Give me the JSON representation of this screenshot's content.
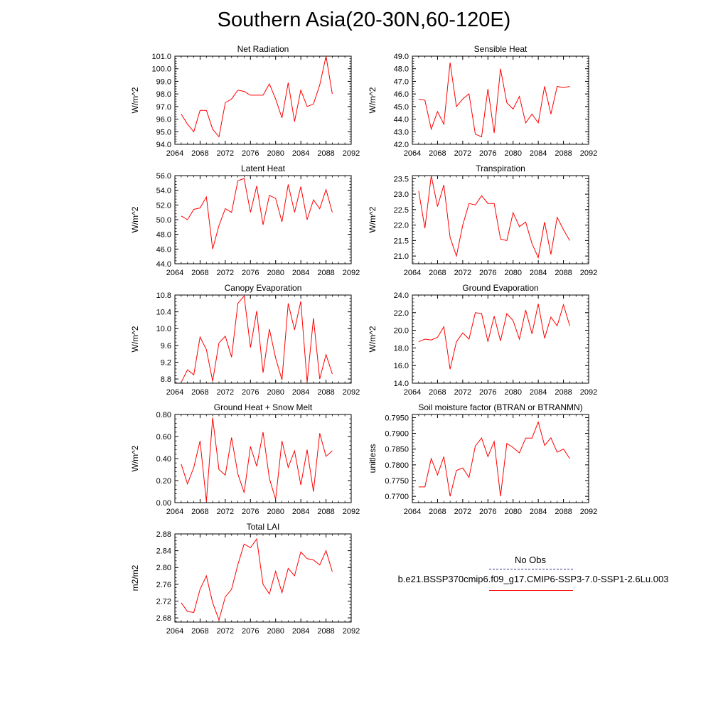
{
  "title": "Southern Asia(20-30N,60-120E)",
  "legend": {
    "obs_label": "No Obs",
    "obs_color": "#2b2b8f",
    "run_label": "b.e21.BSSP370cmip6.f09_g17.CMIP6-SSP3-7.0-SSP1-2.6Lu.003",
    "run_color": "#ff0000"
  },
  "chart_data": [
    {
      "type": "line",
      "title": "Net Radiation",
      "ylabel": "W/m^2",
      "xlim": [
        2064,
        2092
      ],
      "ylim": [
        94.0,
        101.0
      ],
      "xticks": [
        2064,
        2068,
        2072,
        2076,
        2080,
        2084,
        2088,
        2092
      ],
      "yticks": [
        "94.0",
        "95.0",
        "96.0",
        "97.0",
        "98.0",
        "99.0",
        "100.0",
        "101.0"
      ],
      "series": [
        {
          "color": "#ff0000",
          "x": [
            2065,
            2066,
            2067,
            2068,
            2069,
            2070,
            2071,
            2072,
            2073,
            2074,
            2075,
            2076,
            2077,
            2078,
            2079,
            2080,
            2081,
            2082,
            2083,
            2084,
            2085,
            2086,
            2087,
            2088,
            2089
          ],
          "y": [
            96.4,
            95.6,
            95.0,
            96.7,
            96.7,
            95.2,
            94.6,
            97.3,
            97.6,
            98.3,
            98.2,
            97.9,
            97.9,
            97.9,
            98.8,
            97.6,
            96.1,
            98.9,
            95.8,
            98.3,
            97.0,
            97.2,
            98.7,
            101.0,
            98.0
          ]
        }
      ]
    },
    {
      "type": "line",
      "title": "Sensible Heat",
      "ylabel": "W/m^2",
      "xlim": [
        2064,
        2092
      ],
      "ylim": [
        42.0,
        49.0
      ],
      "xticks": [
        2064,
        2068,
        2072,
        2076,
        2080,
        2084,
        2088,
        2092
      ],
      "yticks": [
        "42.0",
        "43.0",
        "44.0",
        "45.0",
        "46.0",
        "47.0",
        "48.0",
        "49.0"
      ],
      "series": [
        {
          "color": "#ff0000",
          "x": [
            2065,
            2066,
            2067,
            2068,
            2069,
            2070,
            2071,
            2072,
            2073,
            2074,
            2075,
            2076,
            2077,
            2078,
            2079,
            2080,
            2081,
            2082,
            2083,
            2084,
            2085,
            2086,
            2087,
            2088,
            2089
          ],
          "y": [
            45.6,
            45.5,
            43.2,
            44.6,
            43.6,
            48.5,
            45.0,
            45.6,
            46.0,
            42.8,
            42.6,
            46.4,
            42.9,
            48.0,
            45.3,
            44.8,
            45.8,
            43.7,
            44.4,
            43.7,
            46.6,
            44.4,
            46.6,
            46.5,
            46.6
          ]
        }
      ]
    },
    {
      "type": "line",
      "title": "Latent Heat",
      "ylabel": "W/m^2",
      "xlim": [
        2064,
        2092
      ],
      "ylim": [
        44.0,
        56.0
      ],
      "xticks": [
        2064,
        2068,
        2072,
        2076,
        2080,
        2084,
        2088,
        2092
      ],
      "yticks": [
        "44.0",
        "46.0",
        "48.0",
        "50.0",
        "52.0",
        "54.0",
        "56.0"
      ],
      "series": [
        {
          "color": "#ff0000",
          "x": [
            2065,
            2066,
            2067,
            2068,
            2069,
            2070,
            2071,
            2072,
            2073,
            2074,
            2075,
            2076,
            2077,
            2078,
            2079,
            2080,
            2081,
            2082,
            2083,
            2084,
            2085,
            2086,
            2087,
            2088,
            2089
          ],
          "y": [
            50.5,
            50.0,
            51.4,
            51.6,
            53.1,
            46.0,
            49.2,
            51.5,
            51.0,
            55.3,
            55.6,
            51.0,
            54.6,
            49.3,
            53.3,
            52.9,
            49.7,
            54.8,
            51.0,
            54.5,
            50.0,
            52.7,
            51.5,
            54.1,
            51.0
          ]
        }
      ]
    },
    {
      "type": "line",
      "title": "Transpiration",
      "ylabel": "W/m^2",
      "xlim": [
        2064,
        2092
      ],
      "ylim": [
        20.75,
        23.6
      ],
      "xticks": [
        2064,
        2068,
        2072,
        2076,
        2080,
        2084,
        2088,
        2092
      ],
      "yticks": [
        "21.0",
        "21.5",
        "22.0",
        "22.5",
        "23.0",
        "23.5"
      ],
      "series": [
        {
          "color": "#ff0000",
          "x": [
            2065,
            2066,
            2067,
            2068,
            2069,
            2070,
            2071,
            2072,
            2073,
            2074,
            2075,
            2076,
            2077,
            2078,
            2079,
            2080,
            2081,
            2082,
            2083,
            2084,
            2085,
            2086,
            2087,
            2088,
            2089
          ],
          "y": [
            23.1,
            21.9,
            23.6,
            22.6,
            23.3,
            21.6,
            21.0,
            22.0,
            22.7,
            22.65,
            22.95,
            22.7,
            22.7,
            21.55,
            21.5,
            22.4,
            21.95,
            22.1,
            21.4,
            20.95,
            22.1,
            21.05,
            22.25,
            21.85,
            21.5
          ]
        }
      ]
    },
    {
      "type": "line",
      "title": "Canopy Evaporation",
      "ylabel": "W/m^2",
      "xlim": [
        2064,
        2092
      ],
      "ylim": [
        8.7,
        10.8
      ],
      "xticks": [
        2064,
        2068,
        2072,
        2076,
        2080,
        2084,
        2088,
        2092
      ],
      "yticks": [
        "8.8",
        "9.2",
        "9.6",
        "10.0",
        "10.4",
        "10.8"
      ],
      "series": [
        {
          "color": "#ff0000",
          "x": [
            2065,
            2066,
            2067,
            2068,
            2069,
            2070,
            2071,
            2072,
            2073,
            2074,
            2075,
            2076,
            2077,
            2078,
            2079,
            2080,
            2081,
            2082,
            2083,
            2084,
            2085,
            2086,
            2087,
            2088,
            2089
          ],
          "y": [
            8.72,
            9.02,
            8.9,
            9.8,
            9.5,
            8.75,
            9.66,
            9.82,
            9.32,
            10.6,
            10.78,
            9.55,
            10.42,
            8.95,
            9.99,
            9.3,
            8.78,
            10.6,
            9.97,
            10.65,
            8.72,
            10.25,
            8.8,
            9.38,
            8.92
          ]
        }
      ]
    },
    {
      "type": "line",
      "title": "Ground Evaporation",
      "ylabel": "W/m^2",
      "xlim": [
        2064,
        2092
      ],
      "ylim": [
        14.0,
        24.0
      ],
      "xticks": [
        2064,
        2068,
        2072,
        2076,
        2080,
        2084,
        2088,
        2092
      ],
      "yticks": [
        "14.0",
        "16.0",
        "18.0",
        "20.0",
        "22.0",
        "24.0"
      ],
      "series": [
        {
          "color": "#ff0000",
          "x": [
            2065,
            2066,
            2067,
            2068,
            2069,
            2070,
            2071,
            2072,
            2073,
            2074,
            2075,
            2076,
            2077,
            2078,
            2079,
            2080,
            2081,
            2082,
            2083,
            2084,
            2085,
            2086,
            2087,
            2088,
            2089
          ],
          "y": [
            18.7,
            19.0,
            18.9,
            19.2,
            20.4,
            15.6,
            18.7,
            19.7,
            19.0,
            22.0,
            21.9,
            18.7,
            21.6,
            18.8,
            21.9,
            21.1,
            19.0,
            22.3,
            19.6,
            23.0,
            19.1,
            21.5,
            20.5,
            22.9,
            20.5
          ]
        }
      ]
    },
    {
      "type": "line",
      "title": "Ground Heat + Snow Melt",
      "ylabel": "W/m^2",
      "xlim": [
        2064,
        2092
      ],
      "ylim": [
        0.0,
        0.8
      ],
      "xticks": [
        2064,
        2068,
        2072,
        2076,
        2080,
        2084,
        2088,
        2092
      ],
      "yticks": [
        "0.00",
        "0.20",
        "0.40",
        "0.60",
        "0.80"
      ],
      "series": [
        {
          "color": "#ff0000",
          "x": [
            2065,
            2066,
            2067,
            2068,
            2069,
            2070,
            2071,
            2072,
            2073,
            2074,
            2075,
            2076,
            2077,
            2078,
            2079,
            2080,
            2081,
            2082,
            2083,
            2084,
            2085,
            2086,
            2087,
            2088,
            2089
          ],
          "y": [
            0.35,
            0.17,
            0.32,
            0.56,
            0.01,
            0.77,
            0.3,
            0.25,
            0.59,
            0.26,
            0.09,
            0.51,
            0.33,
            0.64,
            0.22,
            0.03,
            0.56,
            0.32,
            0.47,
            0.16,
            0.48,
            0.1,
            0.63,
            0.42,
            0.47
          ]
        }
      ]
    },
    {
      "type": "line",
      "title": "Soil moisture factor (BTRAN or BTRANMN)",
      "ylabel": "unitless",
      "xlim": [
        2064,
        2092
      ],
      "ylim": [
        0.768,
        0.796
      ],
      "xticks": [
        2064,
        2068,
        2072,
        2076,
        2080,
        2084,
        2088,
        2092
      ],
      "yticks": [
        "0.7700",
        "0.7750",
        "0.7800",
        "0.7850",
        "0.7900",
        "0.7950"
      ],
      "series": [
        {
          "color": "#ff0000",
          "x": [
            2065,
            2066,
            2067,
            2068,
            2069,
            2070,
            2071,
            2072,
            2073,
            2074,
            2075,
            2076,
            2077,
            2078,
            2079,
            2080,
            2081,
            2082,
            2083,
            2084,
            2085,
            2086,
            2087,
            2088,
            2089
          ],
          "y": [
            0.773,
            0.773,
            0.782,
            0.7768,
            0.7826,
            0.77,
            0.7782,
            0.779,
            0.776,
            0.786,
            0.7885,
            0.7826,
            0.7874,
            0.77,
            0.7868,
            0.7855,
            0.7838,
            0.7885,
            0.7885,
            0.7936,
            0.7862,
            0.7886,
            0.784,
            0.785,
            0.782
          ]
        }
      ]
    },
    {
      "type": "line",
      "title": "Total LAI",
      "ylabel": "m2/m2",
      "xlim": [
        2064,
        2092
      ],
      "ylim": [
        2.67,
        2.88
      ],
      "xticks": [
        2064,
        2068,
        2072,
        2076,
        2080,
        2084,
        2088,
        2092
      ],
      "yticks": [
        "2.68",
        "2.72",
        "2.76",
        "2.80",
        "2.84",
        "2.88"
      ],
      "series": [
        {
          "color": "#ff0000",
          "x": [
            2065,
            2066,
            2067,
            2068,
            2069,
            2070,
            2071,
            2072,
            2073,
            2074,
            2075,
            2076,
            2077,
            2078,
            2079,
            2080,
            2081,
            2082,
            2083,
            2084,
            2085,
            2086,
            2087,
            2088,
            2089
          ],
          "y": [
            2.716,
            2.695,
            2.693,
            2.748,
            2.78,
            2.716,
            2.675,
            2.73,
            2.748,
            2.807,
            2.856,
            2.847,
            2.868,
            2.76,
            2.737,
            2.791,
            2.74,
            2.798,
            2.78,
            2.837,
            2.821,
            2.818,
            2.806,
            2.84,
            2.79
          ]
        }
      ]
    }
  ]
}
